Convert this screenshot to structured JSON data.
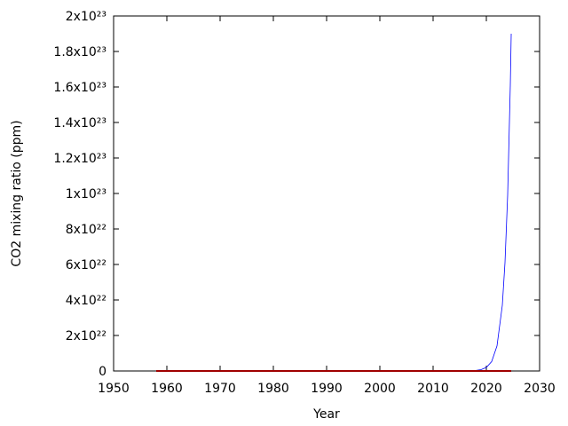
{
  "chart_data": {
    "type": "line",
    "x_label": "Year",
    "y_label": "CO2 mixing ratio (ppm)",
    "xlim": [
      1950,
      2030
    ],
    "xticks": [
      1950,
      1960,
      1970,
      1980,
      1990,
      2000,
      2010,
      2020,
      2030
    ],
    "ylim": [
      0,
      2e+23
    ],
    "yticks": [
      0,
      {
        "value": 2e+22,
        "label": "2x10²²"
      },
      {
        "value": 4e+22,
        "label": "4x10²²"
      },
      {
        "value": 6e+22,
        "label": "6x10²²"
      },
      {
        "value": 8e+22,
        "label": "8x10²²"
      },
      {
        "value": 1e+23,
        "label": "1x10²³"
      },
      {
        "value": 1.2e+23,
        "label": "1.2x10²³"
      },
      {
        "value": 1.4e+23,
        "label": "1.4x10²³"
      },
      {
        "value": 1.6e+23,
        "label": "1.6x10²³"
      },
      {
        "value": 1.8e+23,
        "label": "1.8x10²³"
      },
      {
        "value": 2e+23,
        "label": "2x10²³"
      }
    ],
    "series": [
      {
        "color": "#0000ff",
        "width": 0.8,
        "x": [
          1958,
          1990,
          2010,
          2015,
          2018,
          2019,
          2020,
          2021,
          2022,
          2023,
          2023.5,
          2024,
          2024.5,
          2024.67
        ],
        "values": [
          0,
          0,
          1.2e+17,
          1.5e+19,
          2.9e+20,
          7.6e+20,
          2e+21,
          5.3e+21,
          1.41e+22,
          3.7e+22,
          6.1e+22,
          9.9e+22,
          1.61e+23,
          1.9e+23
        ]
      },
      {
        "color": "#a00000",
        "width": 2,
        "x": [
          1958,
          1980,
          2000,
          2020,
          2024.67
        ],
        "values": [
          315,
          339,
          369,
          413,
          422
        ]
      }
    ]
  }
}
